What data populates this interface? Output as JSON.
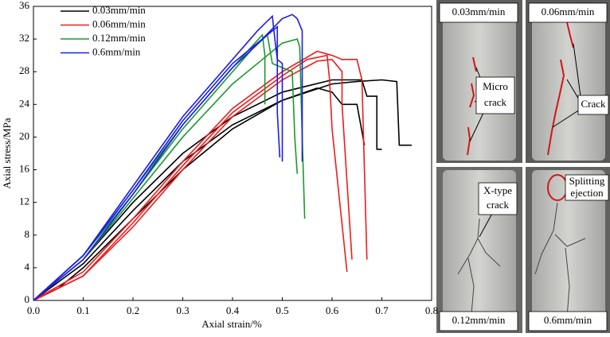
{
  "chart_data": {
    "type": "line",
    "xlabel": "Axial strain/%",
    "ylabel": "Axial stress/MPa",
    "xlim": [
      0,
      0.8
    ],
    "ylim": [
      0,
      36
    ],
    "xticks": [
      {
        "value": 0,
        "label": "0.0"
      },
      {
        "value": 0.1,
        "label": "0.1"
      },
      {
        "value": 0.2,
        "label": "0.2"
      },
      {
        "value": 0.3,
        "label": "0.3"
      },
      {
        "value": 0.4,
        "label": "0.4"
      },
      {
        "value": 0.5,
        "label": "0.5"
      },
      {
        "value": 0.6,
        "label": "0.6"
      },
      {
        "value": 0.7,
        "label": "0.7"
      },
      {
        "value": 0.8,
        "label": "0.8"
      }
    ],
    "yticks": [
      0,
      4,
      8,
      12,
      16,
      20,
      24,
      28,
      32,
      36
    ],
    "legend": "upper-left",
    "series": [
      {
        "name": "0.03mm/min",
        "color": "#000000",
        "curves": [
          {
            "x": [
              0,
              0.05,
              0.1,
              0.2,
              0.3,
              0.4,
              0.5,
              0.6,
              0.65,
              0.7,
              0.73,
              0.735,
              0.76
            ],
            "values": [
              0,
              1.5,
              4,
              10,
              16,
              21,
              24.5,
              26.5,
              26.8,
              27,
              26.8,
              19,
              19
            ]
          },
          {
            "x": [
              0,
              0.1,
              0.2,
              0.3,
              0.4,
              0.5,
              0.6,
              0.66,
              0.67,
              0.69,
              0.69,
              0.7
            ],
            "values": [
              0,
              5,
              12,
              18,
              22.5,
              25.5,
              27,
              27,
              25,
              25,
              18.5,
              18.5
            ]
          },
          {
            "x": [
              0,
              0.1,
              0.2,
              0.3,
              0.4,
              0.5,
              0.57,
              0.6,
              0.62,
              0.65,
              0.665
            ],
            "values": [
              0,
              4.5,
              11,
              17,
              21.5,
              24.5,
              26,
              25.5,
              24,
              24,
              19
            ]
          }
        ]
      },
      {
        "name": "0.06mm/min",
        "color": "#ee1c1c",
        "curves": [
          {
            "x": [
              0,
              0.1,
              0.2,
              0.3,
              0.4,
              0.5,
              0.57,
              0.6,
              0.62,
              0.62,
              0.64
            ],
            "values": [
              0,
              3,
              9,
              16,
              22.5,
              27,
              29.3,
              29.5,
              28,
              24,
              5
            ]
          },
          {
            "x": [
              0,
              0.1,
              0.2,
              0.3,
              0.4,
              0.5,
              0.57,
              0.6,
              0.62,
              0.65,
              0.66,
              0.67
            ],
            "values": [
              0,
              3.5,
              10,
              17,
              23.5,
              28,
              30.5,
              30,
              29.5,
              29.5,
              27,
              5
            ]
          },
          {
            "x": [
              0,
              0.1,
              0.2,
              0.3,
              0.4,
              0.5,
              0.55,
              0.59,
              0.595,
              0.6,
              0.63
            ],
            "values": [
              0,
              3,
              9.5,
              16.5,
              23,
              27.5,
              29.5,
              30,
              27,
              21,
              3.5
            ]
          }
        ]
      },
      {
        "name": "0.12mm/min",
        "color": "#1a9a2a",
        "curves": [
          {
            "x": [
              0,
              0.1,
              0.2,
              0.3,
              0.4,
              0.45,
              0.47,
              0.48,
              0.5,
              0.52,
              0.525,
              0.53
            ],
            "values": [
              0,
              5.5,
              13,
              21,
              28,
              31.5,
              32.5,
              29,
              28.5,
              28,
              20,
              15.5
            ]
          },
          {
            "x": [
              0,
              0.1,
              0.2,
              0.3,
              0.4,
              0.46,
              0.5,
              0.53,
              0.535,
              0.54,
              0.545
            ],
            "values": [
              0,
              5,
              12.5,
              20,
              26.5,
              29.5,
              31.5,
              32,
              31,
              20,
              10
            ]
          },
          {
            "x": [
              0,
              0.1,
              0.2,
              0.3,
              0.4,
              0.46,
              0.465,
              0.465
            ],
            "values": [
              0,
              5.5,
              13.5,
              21.5,
              28.5,
              32.5,
              30,
              24
            ]
          }
        ]
      },
      {
        "name": "0.6mm/min",
        "color": "#1c1cee",
        "curves": [
          {
            "x": [
              0,
              0.1,
              0.2,
              0.3,
              0.4,
              0.45,
              0.48,
              0.485,
              0.49,
              0.5,
              0.5
            ],
            "values": [
              0,
              5.5,
              14,
              22.5,
              29.5,
              33,
              34.8,
              32,
              29.5,
              29,
              17
            ]
          },
          {
            "x": [
              0,
              0.1,
              0.2,
              0.3,
              0.4,
              0.47,
              0.49,
              0.49,
              0.495
            ],
            "values": [
              0,
              5,
              13,
              21.5,
              28.5,
              32.5,
              33.5,
              23,
              17.5
            ]
          },
          {
            "x": [
              0,
              0.1,
              0.2,
              0.3,
              0.4,
              0.46,
              0.5,
              0.52,
              0.53,
              0.54,
              0.54
            ],
            "values": [
              0,
              5.5,
              13.5,
              22,
              29,
              32,
              34.5,
              35,
              34.5,
              33,
              17
            ]
          }
        ]
      }
    ]
  },
  "photos": [
    {
      "label": "0.03mm/min",
      "annotation": [
        "Micro",
        "crack"
      ]
    },
    {
      "label": "0.06mm/min",
      "annotation": [
        "Crack"
      ]
    },
    {
      "label": "0.12mm/min",
      "annotation": [
        "X-type",
        "crack"
      ]
    },
    {
      "label": "0.6mm/min",
      "annotation": [
        "Splitting",
        "ejection"
      ]
    }
  ]
}
